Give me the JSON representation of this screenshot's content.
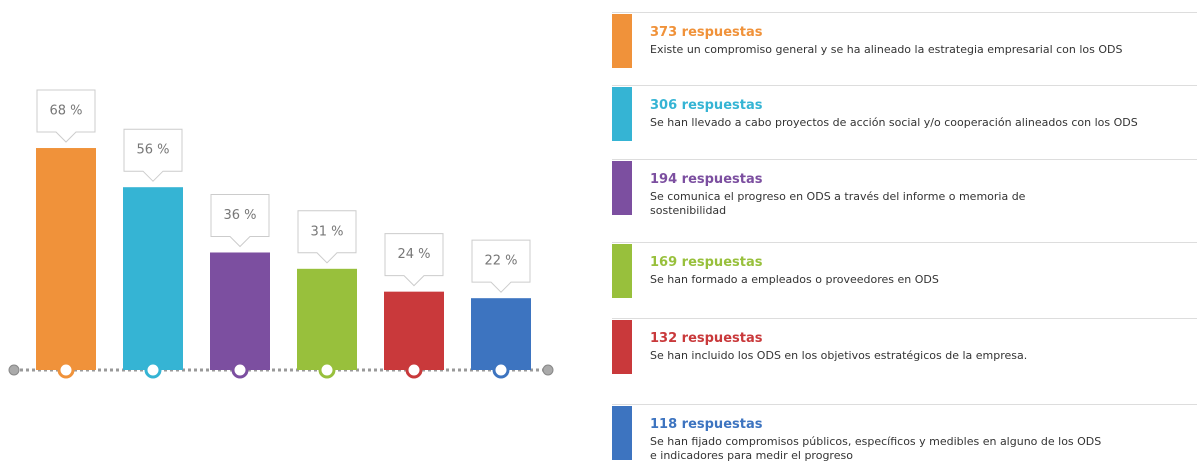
{
  "chart_data": {
    "type": "bar",
    "values": [
      68,
      56,
      36,
      31,
      24,
      22
    ],
    "value_labels": [
      "68 %",
      "56 %",
      "36 %",
      "31 %",
      "24 %",
      "22 %"
    ],
    "colors": [
      "#f0923a",
      "#35b4d4",
      "#7c4fa0",
      "#98c03c",
      "#c9393b",
      "#3d74c0"
    ],
    "ylim": [
      0,
      70
    ],
    "items": [
      {
        "count_label": "373 respuestas",
        "description": [
          "Existe un compromiso general y se ha alineado la estrategia empresarial con los ODS"
        ]
      },
      {
        "count_label": "306 respuestas",
        "description": [
          "Se han llevado a cabo proyectos de acción social y/o cooperación alineados con los ODS"
        ]
      },
      {
        "count_label": "194 respuestas",
        "description": [
          "Se comunica el progreso en ODS a través del informe o memoria de",
          "sostenibilidad"
        ]
      },
      {
        "count_label": "169 respuestas",
        "description": [
          "Se han formado a empleados o proveedores en ODS"
        ]
      },
      {
        "count_label": "132 respuestas",
        "description": [
          "Se han incluido los ODS en los objetivos estratégicos de la empresa."
        ]
      },
      {
        "count_label": "118 respuestas",
        "description": [
          "Se han fijado compromisos públicos, específicos y medibles en alguno de los ODS",
          "e indicadores para medir el progreso"
        ]
      }
    ]
  }
}
